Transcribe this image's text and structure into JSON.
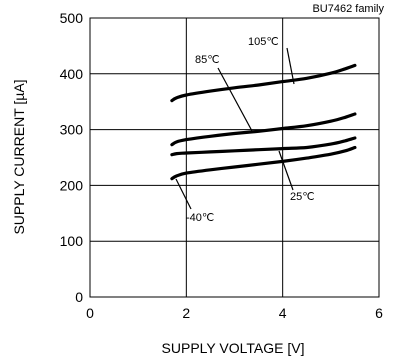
{
  "chart_data": {
    "type": "line",
    "title": "",
    "corner_note": "BU7462 family",
    "xlabel": "SUPPLY VOLTAGE [V]",
    "ylabel": "SUPPLY CURRENT [µA]",
    "xlim": [
      0,
      6
    ],
    "ylim": [
      0,
      500
    ],
    "x_ticks": [
      0,
      2,
      4,
      6
    ],
    "y_ticks": [
      0,
      100,
      200,
      300,
      400,
      500
    ],
    "grid": true,
    "series": [
      {
        "name": "105℃",
        "x": [
          1.7,
          1.8,
          2.0,
          2.5,
          3.0,
          3.5,
          4.0,
          4.5,
          5.0,
          5.3,
          5.5
        ],
        "y": [
          352,
          357,
          362,
          369,
          375,
          380,
          386,
          392,
          401,
          409,
          415
        ]
      },
      {
        "name": "85℃",
        "x": [
          1.7,
          1.8,
          2.0,
          2.5,
          3.0,
          3.5,
          4.0,
          4.5,
          5.0,
          5.3,
          5.5
        ],
        "y": [
          273,
          278,
          282,
          288,
          293,
          297,
          302,
          307,
          315,
          322,
          328
        ]
      },
      {
        "name": "25℃",
        "x": [
          1.7,
          1.8,
          2.0,
          2.5,
          3.0,
          3.5,
          4.0,
          4.5,
          5.0,
          5.3,
          5.5
        ],
        "y": [
          255,
          257,
          258,
          260,
          262,
          264,
          266,
          268,
          274,
          280,
          285
        ]
      },
      {
        "name": "-40℃",
        "x": [
          1.7,
          1.8,
          2.0,
          2.5,
          3.0,
          3.5,
          4.0,
          4.5,
          5.0,
          5.3,
          5.5
        ],
        "y": [
          212,
          217,
          222,
          228,
          233,
          238,
          243,
          249,
          256,
          262,
          268
        ]
      }
    ]
  }
}
